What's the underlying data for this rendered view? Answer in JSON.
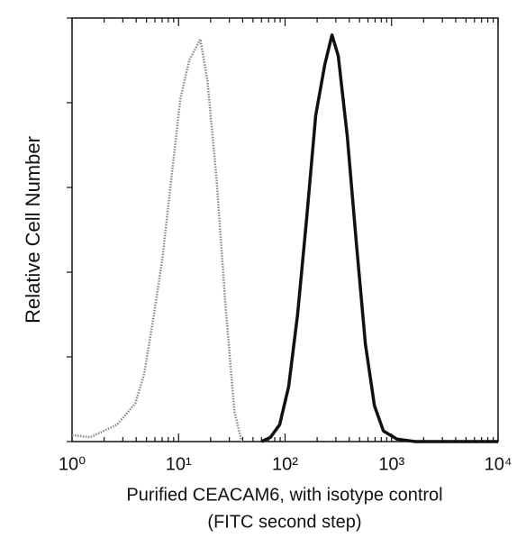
{
  "chart_data": {
    "type": "line",
    "ylabel": "Relative Cell Number",
    "xlabel": [
      "Purified CEACAM6, with isotype control",
      "(FITC second step)"
    ],
    "xscale": "log",
    "xlim": [
      1,
      10000
    ],
    "xticks": [
      {
        "value": 1,
        "label": "10⁰"
      },
      {
        "value": 10,
        "label": "10¹"
      },
      {
        "value": 100,
        "label": "10²"
      },
      {
        "value": 1000,
        "label": "10³"
      },
      {
        "value": 10000,
        "label": "10⁴"
      }
    ],
    "xminor_ticks": [
      2,
      3,
      4,
      5,
      6,
      7,
      8,
      9,
      20,
      30,
      40,
      50,
      60,
      70,
      80,
      90,
      200,
      300,
      400,
      500,
      600,
      700,
      800,
      900,
      2000,
      3000,
      4000,
      5000,
      6000,
      7000,
      8000,
      9000
    ],
    "ylim": [
      0,
      100
    ],
    "yticks": [
      0,
      20,
      40,
      60,
      80,
      100
    ],
    "series": [
      {
        "color": "#8a8a8a",
        "style": "dotted",
        "x": [
          1,
          1.48,
          2.65,
          3.92,
          4.76,
          5.79,
          7.04,
          8.55,
          10.4,
          12.6,
          16,
          18.7,
          22.7,
          27.6,
          33.5,
          39.2
        ],
        "values": [
          1.5,
          1,
          4,
          9,
          16,
          29,
          43,
          62,
          81,
          90,
          95,
          85,
          62,
          32,
          7,
          0
        ]
      },
      {
        "color": "#111111",
        "style": "solid",
        "x": [
          60,
          73,
          89,
          108,
          131,
          160,
          194,
          236,
          276,
          316,
          384,
          467,
          568,
          690,
          839,
          1123,
          1660,
          10000
        ],
        "values": [
          0,
          1,
          4,
          13,
          30,
          53,
          77,
          89,
          96,
          91,
          72,
          47,
          23,
          8.5,
          2.5,
          0.6,
          0,
          0
        ]
      }
    ]
  }
}
